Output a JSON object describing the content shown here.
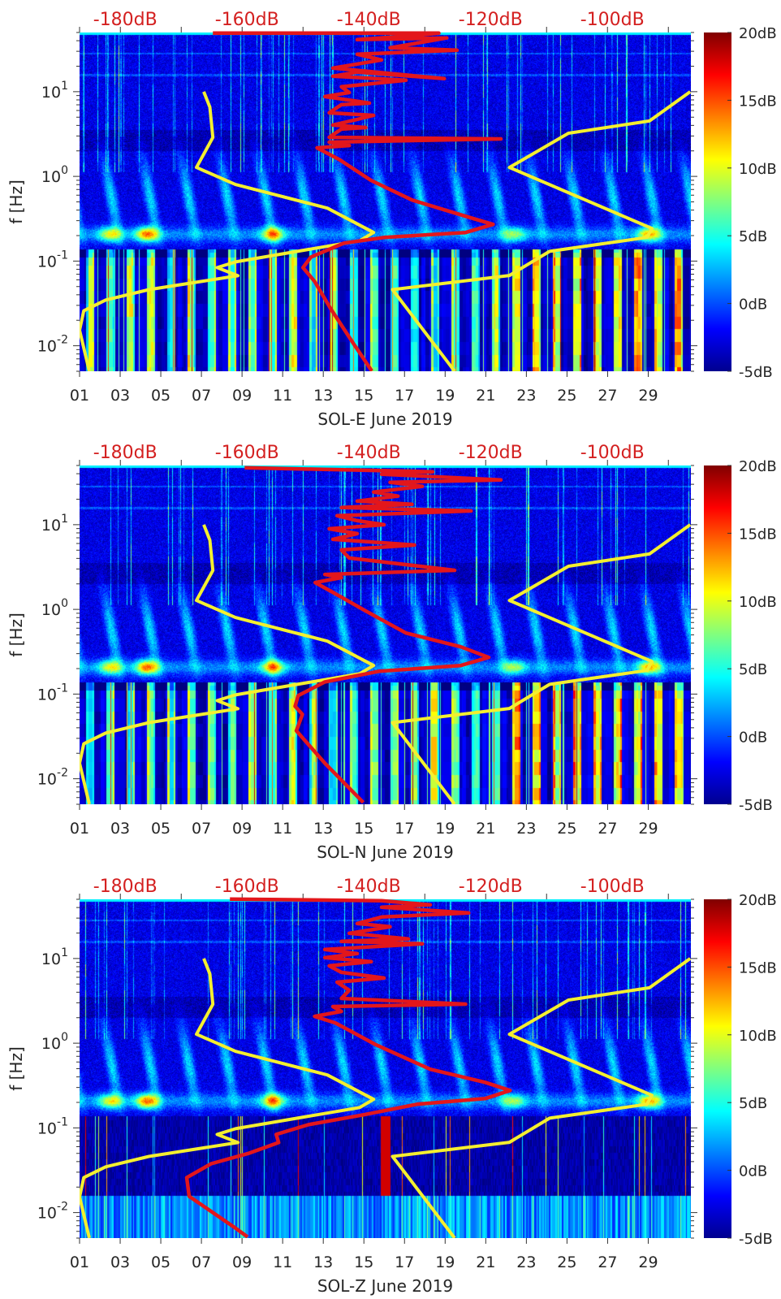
{
  "colors": {
    "model_curve": "#f4ef2f",
    "station_curve": "#e3161b",
    "top_axis_text": "#d42020",
    "text": "#262626"
  },
  "chart_data": [
    {
      "type": "heatmap",
      "title": "",
      "xlabel": "SOL-E June 2019",
      "ylabel": "f [Hz]",
      "x_range_days": [
        1,
        31.1
      ],
      "x_ticks": {
        "values": [
          1,
          3,
          5,
          7,
          9,
          11,
          13,
          15,
          17,
          19,
          21,
          23,
          25,
          27,
          29
        ],
        "labels": [
          "01",
          "03",
          "05",
          "07",
          "09",
          "11",
          "13",
          "15",
          "17",
          "19",
          "21",
          "23",
          "25",
          "27",
          "29"
        ]
      },
      "y_scale": "log",
      "y_range_hz": [
        0.005,
        50
      ],
      "y_ticks": [
        {
          "value": 10,
          "base": "10",
          "exp": "1"
        },
        {
          "value": 1,
          "base": "10",
          "exp": "0"
        },
        {
          "value": 0.1,
          "base": "10",
          "exp": "-1"
        },
        {
          "value": 0.01,
          "base": "10",
          "exp": "-2"
        }
      ],
      "top_axis": {
        "range_db": [
          -186.7,
          -86.3
        ],
        "ticks_db": [
          -180,
          -160,
          -140,
          -120,
          -100
        ],
        "labels": [
          "-180dB",
          "-160dB",
          "-140dB",
          "-120dB",
          "-100dB"
        ]
      },
      "colorbar": {
        "range_db": [
          -5,
          20
        ],
        "colormap": "jet",
        "tick_values": [
          20,
          15,
          10,
          5,
          0,
          -5
        ],
        "labels": [
          "20dB",
          "15dB",
          "10dB",
          "5dB",
          "0dB",
          "-5dB"
        ]
      },
      "curves_db_vs_log10_hz": {
        "low_model": [
          [
            -166.3,
            1.0
          ],
          [
            -165.3,
            0.817
          ],
          [
            -164.8,
            0.46
          ],
          [
            -167.5,
            0.106
          ],
          [
            -161.1,
            -0.096
          ],
          [
            -146.0,
            -0.375
          ],
          [
            -138.4,
            -0.663
          ],
          [
            -140.7,
            -0.76
          ],
          [
            -161.1,
            -1.01
          ],
          [
            -164.1,
            -1.077
          ],
          [
            -160.7,
            -1.173
          ],
          [
            -175.3,
            -1.337
          ],
          [
            -182.4,
            -1.46
          ],
          [
            -186.0,
            -1.587
          ],
          [
            -186.7,
            -1.817
          ],
          [
            -185.1,
            -2.3
          ]
        ],
        "high_model": [
          [
            -86.4,
            1.0
          ],
          [
            -93.1,
            0.654
          ],
          [
            -106.4,
            0.51
          ],
          [
            -116.1,
            0.106
          ],
          [
            -92.7,
            -0.615
          ],
          [
            -93.5,
            -0.72
          ],
          [
            -109.5,
            -0.885
          ],
          [
            -116.1,
            -1.17
          ],
          [
            -135.3,
            -1.337
          ],
          [
            -125.1,
            -2.3
          ]
        ],
        "station": [
          [
            -164.8,
            1.692
          ],
          [
            -127.7,
            1.692
          ],
          [
            -131.7,
            1.663
          ],
          [
            -141.1,
            1.615
          ],
          [
            -126.4,
            1.635
          ],
          [
            -135.7,
            1.519
          ],
          [
            -124.7,
            1.49
          ],
          [
            -141.1,
            1.442
          ],
          [
            -137.1,
            1.375
          ],
          [
            -145.1,
            1.279
          ],
          [
            -126.8,
            1.154
          ],
          [
            -141.1,
            1.231
          ],
          [
            -145.1,
            1.183
          ],
          [
            -133.1,
            1.135
          ],
          [
            -143.7,
            1.058
          ],
          [
            -142.4,
            0.99
          ],
          [
            -146.4,
            0.942
          ],
          [
            -139.1,
            0.865
          ],
          [
            -143.7,
            0.846
          ],
          [
            -145.7,
            0.75
          ],
          [
            -138.4,
            0.721
          ],
          [
            -141.1,
            0.673
          ],
          [
            -145.1,
            0.606
          ],
          [
            -139.7,
            0.577
          ],
          [
            -143.7,
            0.558
          ],
          [
            -145.7,
            0.462
          ],
          [
            -117.5,
            0.442
          ],
          [
            -145.7,
            0.404
          ],
          [
            -142.4,
            0.365
          ],
          [
            -147.7,
            0.337
          ],
          [
            -144.1,
            0.202
          ],
          [
            -138.8,
            -0.048
          ],
          [
            -132.1,
            -0.279
          ],
          [
            -123.3,
            -0.471
          ],
          [
            -118.8,
            -0.567
          ],
          [
            -123.3,
            -0.663
          ],
          [
            -136.7,
            -0.721
          ],
          [
            -143.3,
            -0.788
          ],
          [
            -148.7,
            -0.952
          ],
          [
            -150.0,
            -1.077
          ],
          [
            -148.1,
            -1.24
          ],
          [
            -145.5,
            -1.558
          ],
          [
            -142.0,
            -1.942
          ],
          [
            -138.7,
            -2.298
          ]
        ]
      }
    },
    {
      "type": "heatmap",
      "title": "",
      "xlabel": "SOL-N June 2019",
      "ylabel": "f [Hz]",
      "x_range_days": [
        1,
        31.1
      ],
      "x_ticks": {
        "values": [
          1,
          3,
          5,
          7,
          9,
          11,
          13,
          15,
          17,
          19,
          21,
          23,
          25,
          27,
          29
        ],
        "labels": [
          "01",
          "03",
          "05",
          "07",
          "09",
          "11",
          "13",
          "15",
          "17",
          "19",
          "21",
          "23",
          "25",
          "27",
          "29"
        ]
      },
      "y_scale": "log",
      "y_range_hz": [
        0.005,
        50
      ],
      "y_ticks": [
        {
          "value": 10,
          "base": "10",
          "exp": "1"
        },
        {
          "value": 1,
          "base": "10",
          "exp": "0"
        },
        {
          "value": 0.1,
          "base": "10",
          "exp": "-1"
        },
        {
          "value": 0.01,
          "base": "10",
          "exp": "-2"
        }
      ],
      "top_axis": {
        "range_db": [
          -186.7,
          -86.3
        ],
        "ticks_db": [
          -180,
          -160,
          -140,
          -120,
          -100
        ],
        "labels": [
          "-180dB",
          "-160dB",
          "-140dB",
          "-120dB",
          "-100dB"
        ]
      },
      "colorbar": {
        "range_db": [
          -5,
          20
        ],
        "colormap": "jet",
        "tick_values": [
          20,
          15,
          10,
          5,
          0,
          -5
        ],
        "labels": [
          "20dB",
          "15dB",
          "10dB",
          "5dB",
          "0dB",
          "-5dB"
        ]
      },
      "curves_db_vs_log10_hz": {
        "low_model": [
          [
            -166.3,
            1.0
          ],
          [
            -165.3,
            0.817
          ],
          [
            -164.8,
            0.46
          ],
          [
            -167.5,
            0.106
          ],
          [
            -161.1,
            -0.096
          ],
          [
            -146.0,
            -0.375
          ],
          [
            -138.4,
            -0.663
          ],
          [
            -140.7,
            -0.76
          ],
          [
            -161.1,
            -1.01
          ],
          [
            -164.1,
            -1.077
          ],
          [
            -160.7,
            -1.173
          ],
          [
            -175.3,
            -1.337
          ],
          [
            -182.4,
            -1.46
          ],
          [
            -186.0,
            -1.587
          ],
          [
            -186.7,
            -1.817
          ],
          [
            -185.1,
            -2.3
          ]
        ],
        "high_model": [
          [
            -86.4,
            1.0
          ],
          [
            -93.1,
            0.654
          ],
          [
            -106.4,
            0.51
          ],
          [
            -116.1,
            0.106
          ],
          [
            -92.7,
            -0.615
          ],
          [
            -93.5,
            -0.72
          ],
          [
            -109.5,
            -0.885
          ],
          [
            -116.1,
            -1.17
          ],
          [
            -135.3,
            -1.337
          ],
          [
            -125.1,
            -2.3
          ]
        ],
        "station": [
          [
            -159.6,
            1.673
          ],
          [
            -128.7,
            1.625
          ],
          [
            -137.1,
            1.596
          ],
          [
            -117.5,
            1.529
          ],
          [
            -135.7,
            1.5
          ],
          [
            -130.4,
            1.452
          ],
          [
            -138.4,
            1.385
          ],
          [
            -134.4,
            1.337
          ],
          [
            -141.1,
            1.279
          ],
          [
            -132.1,
            1.24
          ],
          [
            -143.7,
            1.202
          ],
          [
            -122.4,
            1.163
          ],
          [
            -144.4,
            1.106
          ],
          [
            -141.1,
            1.048
          ],
          [
            -136.7,
            1.0
          ],
          [
            -145.7,
            0.952
          ],
          [
            -141.1,
            0.894
          ],
          [
            -145.1,
            0.827
          ],
          [
            -131.7,
            0.76
          ],
          [
            -143.7,
            0.702
          ],
          [
            -142.4,
            0.606
          ],
          [
            -125.1,
            0.462
          ],
          [
            -146.4,
            0.413
          ],
          [
            -143.7,
            0.375
          ],
          [
            -148.0,
            0.317
          ],
          [
            -145.1,
            0.202
          ],
          [
            -139.7,
            -0.019
          ],
          [
            -133.1,
            -0.279
          ],
          [
            -124.1,
            -0.442
          ],
          [
            -119.5,
            -0.567
          ],
          [
            -124.1,
            -0.663
          ],
          [
            -137.5,
            -0.731
          ],
          [
            -146.4,
            -0.856
          ],
          [
            -150.8,
            -1.019
          ],
          [
            -151.3,
            -1.144
          ],
          [
            -150.1,
            -1.24
          ],
          [
            -151.1,
            -1.433
          ],
          [
            -146.4,
            -1.817
          ],
          [
            -140.1,
            -2.28
          ]
        ]
      }
    },
    {
      "type": "heatmap",
      "title": "",
      "xlabel": "SOL-Z June 2019",
      "ylabel": "f [Hz]",
      "x_range_days": [
        1,
        31.1
      ],
      "x_ticks": {
        "values": [
          1,
          3,
          5,
          7,
          9,
          11,
          13,
          15,
          17,
          19,
          21,
          23,
          25,
          27,
          29
        ],
        "labels": [
          "01",
          "03",
          "05",
          "07",
          "09",
          "11",
          "13",
          "15",
          "17",
          "19",
          "21",
          "23",
          "25",
          "27",
          "29"
        ]
      },
      "y_scale": "log",
      "y_range_hz": [
        0.005,
        50
      ],
      "y_ticks": [
        {
          "value": 10,
          "base": "10",
          "exp": "1"
        },
        {
          "value": 1,
          "base": "10",
          "exp": "0"
        },
        {
          "value": 0.1,
          "base": "10",
          "exp": "-1"
        },
        {
          "value": 0.01,
          "base": "10",
          "exp": "-2"
        }
      ],
      "top_axis": {
        "range_db": [
          -186.7,
          -86.3
        ],
        "ticks_db": [
          -180,
          -160,
          -140,
          -120,
          -100
        ],
        "labels": [
          "-180dB",
          "-160dB",
          "-140dB",
          "-120dB",
          "-100dB"
        ]
      },
      "colorbar": {
        "range_db": [
          -5,
          20
        ],
        "colormap": "jet",
        "tick_values": [
          20,
          15,
          10,
          5,
          0,
          -5
        ],
        "labels": [
          "20dB",
          "15dB",
          "10dB",
          "5dB",
          "0dB",
          "-5dB"
        ]
      },
      "curves_db_vs_log10_hz": {
        "low_model": [
          [
            -166.3,
            1.0
          ],
          [
            -165.3,
            0.817
          ],
          [
            -164.8,
            0.46
          ],
          [
            -167.5,
            0.106
          ],
          [
            -161.1,
            -0.096
          ],
          [
            -146.0,
            -0.375
          ],
          [
            -138.4,
            -0.663
          ],
          [
            -140.7,
            -0.76
          ],
          [
            -161.1,
            -1.01
          ],
          [
            -164.1,
            -1.077
          ],
          [
            -160.7,
            -1.173
          ],
          [
            -175.3,
            -1.337
          ],
          [
            -182.4,
            -1.46
          ],
          [
            -186.0,
            -1.587
          ],
          [
            -186.7,
            -1.817
          ],
          [
            -185.1,
            -2.3
          ]
        ],
        "high_model": [
          [
            -86.4,
            1.0
          ],
          [
            -93.1,
            0.654
          ],
          [
            -106.4,
            0.51
          ],
          [
            -116.1,
            0.106
          ],
          [
            -92.7,
            -0.615
          ],
          [
            -93.5,
            -0.72
          ],
          [
            -109.5,
            -0.885
          ],
          [
            -116.1,
            -1.17
          ],
          [
            -135.3,
            -1.337
          ],
          [
            -125.1,
            -2.3
          ]
        ],
        "station": [
          [
            -162.0,
            1.702
          ],
          [
            -137.1,
            1.683
          ],
          [
            -129.1,
            1.635
          ],
          [
            -137.1,
            1.606
          ],
          [
            -122.8,
            1.538
          ],
          [
            -137.1,
            1.49
          ],
          [
            -141.1,
            1.413
          ],
          [
            -135.7,
            1.375
          ],
          [
            -142.4,
            1.298
          ],
          [
            -132.7,
            1.231
          ],
          [
            -143.7,
            1.202
          ],
          [
            -130.4,
            1.173
          ],
          [
            -146.4,
            1.106
          ],
          [
            -141.1,
            1.058
          ],
          [
            -146.4,
            1.01
          ],
          [
            -138.8,
            0.962
          ],
          [
            -145.7,
            0.913
          ],
          [
            -143.7,
            0.837
          ],
          [
            -136.7,
            0.769
          ],
          [
            -144.4,
            0.721
          ],
          [
            -142.4,
            0.625
          ],
          [
            -143.7,
            0.529
          ],
          [
            -123.3,
            0.462
          ],
          [
            -145.1,
            0.433
          ],
          [
            -143.7,
            0.375
          ],
          [
            -148.1,
            0.317
          ],
          [
            -144.7,
            0.24
          ],
          [
            -138.0,
            -0.019
          ],
          [
            -129.1,
            -0.308
          ],
          [
            -120.1,
            -0.462
          ],
          [
            -116.0,
            -0.558
          ],
          [
            -120.1,
            -0.654
          ],
          [
            -131.3,
            -0.721
          ],
          [
            -140.1,
            -0.846
          ],
          [
            -149.1,
            -0.962
          ],
          [
            -154.4,
            -1.077
          ],
          [
            -154.0,
            -1.173
          ],
          [
            -158.8,
            -1.298
          ],
          [
            -165.1,
            -1.423
          ],
          [
            -169.1,
            -1.587
          ],
          [
            -168.7,
            -1.808
          ],
          [
            -161.5,
            -2.163
          ],
          [
            -159.1,
            -2.288
          ]
        ]
      }
    }
  ]
}
